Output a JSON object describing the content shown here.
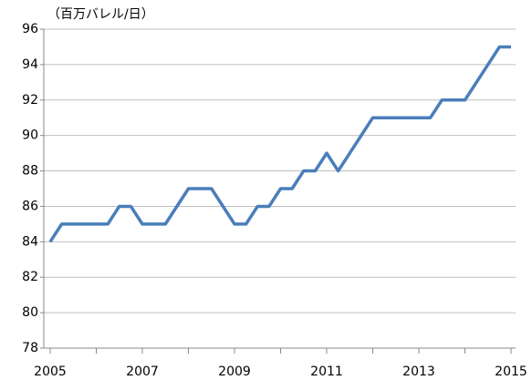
{
  "chart_data": {
    "type": "line",
    "unit_label": "（百万バレル/日）",
    "x": [
      2005,
      2005.25,
      2006.25,
      2006.5,
      2006.75,
      2007,
      2007.5,
      2008,
      2008.5,
      2009,
      2009.25,
      2009.5,
      2009.75,
      2010,
      2010.25,
      2010.5,
      2010.75,
      2011,
      2011.25,
      2012,
      2013.25,
      2013.5,
      2014,
      2014.75,
      2015
    ],
    "series": [
      {
        "color": "#4a7ebb",
        "values": [
          84,
          85,
          85,
          86,
          86,
          85,
          85,
          87,
          87,
          85,
          85,
          86,
          86,
          87,
          87,
          88,
          88,
          89,
          88,
          91,
          91,
          92,
          92,
          95,
          95
        ]
      }
    ],
    "xlim": [
      2005,
      2015
    ],
    "xticks": [
      2005,
      2007,
      2009,
      2011,
      2013,
      2015
    ],
    "xticks_minor": [
      2006,
      2008,
      2010,
      2012,
      2014
    ],
    "ylim": [
      78,
      96
    ],
    "yticks": [
      78,
      80,
      82,
      84,
      86,
      88,
      90,
      92,
      94,
      96
    ],
    "grid": true
  }
}
